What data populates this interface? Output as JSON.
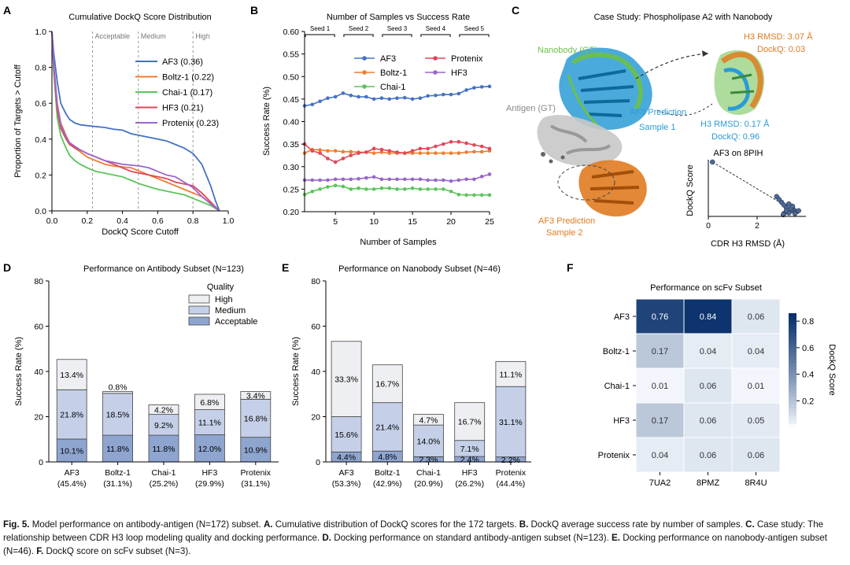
{
  "panel_letters": [
    "A",
    "B",
    "C",
    "D",
    "E",
    "F"
  ],
  "chart_data": [
    {
      "id": "A",
      "type": "line",
      "title": "Cumulative DockQ Score Distribution",
      "xlabel": "DockQ Score Cutoff",
      "ylabel": "Proportion of Targets > Cutoff",
      "xlim": [
        0,
        1.0
      ],
      "ylim": [
        0,
        1.0
      ],
      "xticks": [
        "0.0",
        "0.2",
        "0.4",
        "0.6",
        "0.8",
        "1.0"
      ],
      "yticks": [
        "0.0",
        "0.2",
        "0.4",
        "0.6",
        "0.8",
        "1.0"
      ],
      "thresholds": [
        {
          "value": 0.23,
          "label": "Acceptable"
        },
        {
          "value": 0.49,
          "label": "Medium"
        },
        {
          "value": 0.8,
          "label": "High"
        }
      ],
      "legend_position": "upper-right",
      "series": [
        {
          "name": "AF3 (0.36)",
          "color": "#4472c4",
          "x": [
            0,
            0.01,
            0.03,
            0.05,
            0.08,
            0.1,
            0.13,
            0.16,
            0.2,
            0.25,
            0.3,
            0.35,
            0.4,
            0.45,
            0.5,
            0.55,
            0.6,
            0.65,
            0.7,
            0.75,
            0.8,
            0.85,
            0.9,
            0.93,
            0.95
          ],
          "y": [
            1,
            0.88,
            0.72,
            0.6,
            0.54,
            0.51,
            0.49,
            0.48,
            0.475,
            0.47,
            0.465,
            0.455,
            0.45,
            0.43,
            0.42,
            0.41,
            0.4,
            0.39,
            0.37,
            0.35,
            0.32,
            0.26,
            0.14,
            0.05,
            0
          ]
        },
        {
          "name": "Boltz-1 (0.22)",
          "color": "#ed7d31",
          "x": [
            0,
            0.01,
            0.03,
            0.05,
            0.08,
            0.1,
            0.13,
            0.16,
            0.2,
            0.25,
            0.3,
            0.35,
            0.4,
            0.45,
            0.5,
            0.55,
            0.6,
            0.65,
            0.7,
            0.75,
            0.8,
            0.85,
            0.9,
            0.95
          ],
          "y": [
            1,
            0.82,
            0.6,
            0.49,
            0.42,
            0.38,
            0.35,
            0.33,
            0.3,
            0.28,
            0.26,
            0.25,
            0.245,
            0.24,
            0.22,
            0.2,
            0.18,
            0.16,
            0.14,
            0.12,
            0.1,
            0.08,
            0.04,
            0
          ]
        },
        {
          "name": "Chai-1 (0.17)",
          "color": "#5bc45b",
          "x": [
            0,
            0.01,
            0.03,
            0.05,
            0.08,
            0.1,
            0.13,
            0.16,
            0.2,
            0.25,
            0.3,
            0.35,
            0.4,
            0.45,
            0.5,
            0.55,
            0.6,
            0.65,
            0.7,
            0.75,
            0.8,
            0.85,
            0.9,
            0.95
          ],
          "y": [
            1,
            0.78,
            0.52,
            0.42,
            0.35,
            0.31,
            0.28,
            0.26,
            0.24,
            0.22,
            0.21,
            0.2,
            0.19,
            0.17,
            0.15,
            0.135,
            0.12,
            0.11,
            0.1,
            0.09,
            0.07,
            0.05,
            0.03,
            0
          ]
        },
        {
          "name": "HF3 (0.21)",
          "color": "#e0475a",
          "x": [
            0,
            0.01,
            0.03,
            0.05,
            0.08,
            0.1,
            0.13,
            0.16,
            0.2,
            0.25,
            0.3,
            0.35,
            0.4,
            0.45,
            0.5,
            0.55,
            0.6,
            0.65,
            0.7,
            0.75,
            0.8,
            0.85,
            0.9,
            0.95
          ],
          "y": [
            1,
            0.8,
            0.56,
            0.46,
            0.4,
            0.37,
            0.35,
            0.34,
            0.32,
            0.3,
            0.28,
            0.26,
            0.24,
            0.22,
            0.21,
            0.2,
            0.19,
            0.18,
            0.16,
            0.15,
            0.14,
            0.1,
            0.05,
            0
          ]
        },
        {
          "name": "Protenix (0.23)",
          "color": "#9966cc",
          "x": [
            0,
            0.01,
            0.03,
            0.05,
            0.08,
            0.1,
            0.13,
            0.16,
            0.2,
            0.25,
            0.3,
            0.35,
            0.4,
            0.45,
            0.5,
            0.55,
            0.6,
            0.65,
            0.7,
            0.75,
            0.8,
            0.85,
            0.9,
            0.95
          ],
          "y": [
            1,
            0.81,
            0.59,
            0.48,
            0.41,
            0.38,
            0.36,
            0.34,
            0.32,
            0.3,
            0.28,
            0.27,
            0.26,
            0.255,
            0.25,
            0.24,
            0.22,
            0.2,
            0.19,
            0.16,
            0.13,
            0.08,
            0.04,
            0
          ]
        }
      ]
    },
    {
      "id": "B",
      "type": "line",
      "title": "Number of Samples vs Success Rate",
      "xlabel": "Number of Samples",
      "ylabel": "Success Rate (%)",
      "xlim": [
        1,
        25
      ],
      "ylim": [
        0.2,
        0.6
      ],
      "xticks": [
        "5",
        "10",
        "15",
        "20",
        "25"
      ],
      "yticks": [
        "0.20",
        "0.25",
        "0.30",
        "0.35",
        "0.40",
        "0.45",
        "0.50",
        "0.55",
        "0.60"
      ],
      "seed_groups": [
        "Seed 1",
        "Seed 2",
        "Seed 3",
        "Seed 4",
        "Seed 5"
      ],
      "legend_position": "upper-middle",
      "series": [
        {
          "name": "AF3",
          "color": "#4472c4",
          "values": [
            0.435,
            0.438,
            0.445,
            0.452,
            0.455,
            0.463,
            0.458,
            0.455,
            0.455,
            0.45,
            0.452,
            0.45,
            0.452,
            0.453,
            0.45,
            0.452,
            0.457,
            0.458,
            0.46,
            0.46,
            0.462,
            0.47,
            0.475,
            0.477,
            0.478
          ]
        },
        {
          "name": "Boltz-1",
          "color": "#ed7d31",
          "values": [
            0.33,
            0.338,
            0.337,
            0.335,
            0.335,
            0.333,
            0.333,
            0.332,
            0.332,
            0.33,
            0.332,
            0.33,
            0.33,
            0.33,
            0.33,
            0.33,
            0.33,
            0.33,
            0.33,
            0.33,
            0.33,
            0.332,
            0.333,
            0.333,
            0.335
          ]
        },
        {
          "name": "Chai-1",
          "color": "#5bc45b",
          "values": [
            0.238,
            0.245,
            0.25,
            0.255,
            0.258,
            0.256,
            0.25,
            0.252,
            0.25,
            0.25,
            0.252,
            0.252,
            0.25,
            0.25,
            0.252,
            0.25,
            0.25,
            0.25,
            0.25,
            0.245,
            0.238,
            0.237,
            0.237,
            0.237,
            0.237
          ]
        },
        {
          "name": "Protenix",
          "color": "#e0475a",
          "values": [
            0.35,
            0.335,
            0.33,
            0.318,
            0.31,
            0.318,
            0.325,
            0.33,
            0.332,
            0.34,
            0.338,
            0.335,
            0.332,
            0.33,
            0.335,
            0.34,
            0.34,
            0.345,
            0.35,
            0.355,
            0.355,
            0.352,
            0.348,
            0.345,
            0.34
          ]
        },
        {
          "name": "HF3",
          "color": "#9966cc",
          "values": [
            0.27,
            0.27,
            0.27,
            0.27,
            0.272,
            0.272,
            0.272,
            0.273,
            0.275,
            0.277,
            0.272,
            0.272,
            0.272,
            0.272,
            0.272,
            0.272,
            0.27,
            0.27,
            0.27,
            0.268,
            0.27,
            0.272,
            0.272,
            0.278,
            0.283
          ]
        }
      ]
    },
    {
      "id": "C-inset",
      "type": "scatter",
      "title": "AF3 on 8PIH",
      "xlabel": "CDR H3 RMSD (Å)",
      "ylabel": "DockQ Score",
      "xlim": [
        0,
        4
      ],
      "ylim": [
        0,
        1
      ],
      "xticks": [
        "0",
        "2"
      ],
      "color": "#4a6a9e",
      "x": [
        0.17,
        2.8,
        3.0,
        3.1,
        3.2,
        3.3,
        3.4,
        3.5,
        3.6,
        3.1,
        3.3,
        3.4,
        3.2,
        3.55,
        3.7,
        2.9,
        3.45,
        3.07
      ],
      "y": [
        0.96,
        0.35,
        0.25,
        0.2,
        0.15,
        0.22,
        0.1,
        0.12,
        0.08,
        0.05,
        0.06,
        0.14,
        0.1,
        0.05,
        0.1,
        0.3,
        0.18,
        0.03
      ],
      "fit_line": {
        "x": [
          0.17,
          3.7
        ],
        "y": [
          0.96,
          0.05
        ]
      }
    },
    {
      "id": "D",
      "type": "bar",
      "title": "Performance on Antibody Subset (N=123)",
      "ylabel": "Success Rate (%)",
      "ylim": [
        0,
        80
      ],
      "yticks": [
        "0",
        "20",
        "40",
        "60",
        "80"
      ],
      "categories": [
        "AF3",
        "Boltz-1",
        "Chai-1",
        "HF3",
        "Protenix"
      ],
      "category_totals": [
        "(45.4%)",
        "(31.1%)",
        "(25.2%)",
        "(29.9%)",
        "(31.1%)"
      ],
      "legend_title": "Quality",
      "series": [
        {
          "name": "Acceptable",
          "color": "#8ea5d0",
          "values": [
            10.1,
            11.8,
            11.8,
            12.0,
            10.9
          ],
          "labels": [
            "10.1%",
            "11.8%",
            "11.8%",
            "12.0%",
            "10.9%"
          ]
        },
        {
          "name": "Medium",
          "color": "#c5d0e8",
          "values": [
            21.8,
            18.5,
            9.2,
            11.1,
            16.8
          ],
          "labels": [
            "21.8%",
            "18.5%",
            "9.2%",
            "11.1%",
            "16.8%"
          ]
        },
        {
          "name": "High",
          "color": "#eeeff2",
          "values": [
            13.4,
            0.8,
            4.2,
            6.8,
            3.4
          ],
          "labels": [
            "13.4%",
            "0.8%",
            "4.2%",
            "6.8%",
            "3.4%"
          ]
        }
      ]
    },
    {
      "id": "E",
      "type": "bar",
      "title": "Performance on Nanobody Subset (N=46)",
      "ylabel": "Success Rate (%)",
      "ylim": [
        0,
        80
      ],
      "yticks": [
        "0",
        "20",
        "40",
        "60",
        "80"
      ],
      "categories": [
        "AF3",
        "Boltz-1",
        "Chai-1",
        "HF3",
        "Protenix"
      ],
      "category_totals": [
        "(53.3%)",
        "(42.9%)",
        "(20.9%)",
        "(26.2%)",
        "(44.4%)"
      ],
      "series": [
        {
          "name": "Acceptable",
          "color": "#8ea5d0",
          "values": [
            4.4,
            4.8,
            2.3,
            2.4,
            2.2
          ],
          "labels": [
            "4.4%",
            "4.8%",
            "2.3%",
            "2.4%",
            "2.2%"
          ]
        },
        {
          "name": "Medium",
          "color": "#c5d0e8",
          "values": [
            15.6,
            21.4,
            14.0,
            7.1,
            31.1
          ],
          "labels": [
            "15.6%",
            "21.4%",
            "14.0%",
            "7.1%",
            "31.1%"
          ]
        },
        {
          "name": "High",
          "color": "#eeeff2",
          "values": [
            33.3,
            16.7,
            4.7,
            16.7,
            11.1
          ],
          "labels": [
            "33.3%",
            "16.7%",
            "4.7%",
            "16.7%",
            "11.1%"
          ]
        }
      ]
    },
    {
      "id": "F",
      "type": "heatmap",
      "title": "Performance on scFv Subset",
      "rows": [
        "AF3",
        "Boltz-1",
        "Chai-1",
        "HF3",
        "Protenix"
      ],
      "cols": [
        "7UA2",
        "8PMZ",
        "8R4U"
      ],
      "values": [
        [
          0.76,
          0.84,
          0.06
        ],
        [
          0.17,
          0.04,
          0.04
        ],
        [
          0.01,
          0.06,
          0.01
        ],
        [
          0.17,
          0.06,
          0.05
        ],
        [
          0.04,
          0.06,
          0.06
        ]
      ],
      "labels": [
        [
          "0.76",
          "0.84",
          "0.06"
        ],
        [
          "0.17",
          "0.04",
          "0.04"
        ],
        [
          "0.01",
          "0.06",
          "0.01"
        ],
        [
          "0.17",
          "0.06",
          "0.05"
        ],
        [
          "0.04",
          "0.06",
          "0.06"
        ]
      ],
      "colorbar_label": "DockQ Score",
      "colorbar_range": [
        0,
        0.86
      ],
      "colorbar_ticks": [
        "0.2",
        "0.4",
        "0.6",
        "0.8"
      ]
    }
  ],
  "case_study": {
    "title": "Case Study: Phospholipase A2 with Nanobody",
    "nanobody_label": "Nanobody (GT)",
    "antigen_label": "Antigen (GT)",
    "af3_sample1_line1": "AF3 Prediction",
    "af3_sample1_line2": "Sample 1",
    "af3_sample2_line1": "AF3 Prediction",
    "af3_sample2_line2": "Sample 2",
    "h3_rmsd_bad": "H3 RMSD: 3.07 Å",
    "dockq_bad": "DockQ: 0.03",
    "h3_rmsd_good": "H3 RMSD: 0.17 Å",
    "dockq_good": "DockQ: 0.96",
    "colors": {
      "nanobody": "#6cc04a",
      "sample1": "#2a9bd6",
      "sample2": "#e07b20",
      "antigen": "#a8a8a8"
    }
  },
  "caption": {
    "fig_label": "Fig. 5.",
    "text": " Model performance on antibody-antigen (N=172) subset. ",
    "parts": [
      {
        "label": "A.",
        "text": " Cumulative distribution of DockQ scores for the 172 targets. "
      },
      {
        "label": "B.",
        "text": " DockQ average success rate by number of samples. "
      },
      {
        "label": "C.",
        "text": " Case study: The relationship between CDR H3 loop modeling quality and docking performance. "
      },
      {
        "label": "D.",
        "text": " Docking performance on standard antibody-antigen subset (N=123). "
      },
      {
        "label": "E.",
        "text": " Docking performance on nanobody-antigen subset (N=46). "
      },
      {
        "label": "F.",
        "text": " DockQ score on scFv subset (N=3)."
      }
    ]
  }
}
